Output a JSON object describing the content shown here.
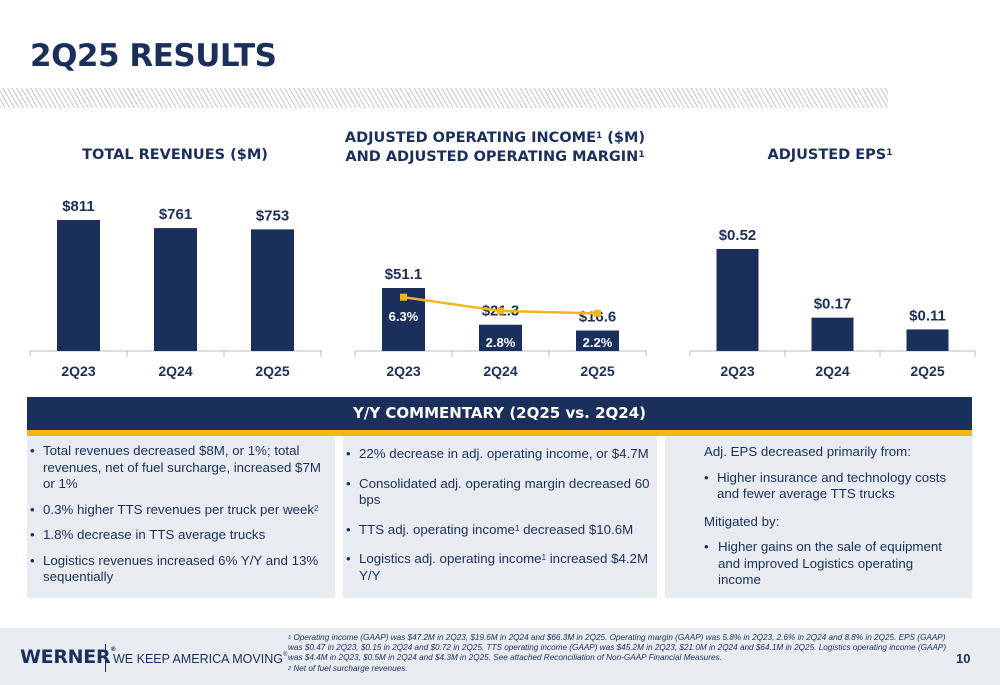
{
  "page": {
    "title": "2Q25 RESULTS",
    "page_number": "10"
  },
  "charts": {
    "revenues": {
      "title": "TOTAL REVENUES ($M)"
    },
    "income": {
      "title_line1": "ADJUSTED OPERATING INCOME",
      "title_line1_sup": "1",
      "title_line1_suffix": " ($M)",
      "title_line2": "AND ADJUSTED OPERATING MARGIN",
      "title_line2_sup": "1"
    },
    "eps": {
      "title": "ADJUSTED EPS",
      "title_sup": "1"
    }
  },
  "chart_data": [
    {
      "type": "bar",
      "title": "TOTAL REVENUES ($M)",
      "categories": [
        "2Q23",
        "2Q24",
        "2Q25"
      ],
      "values": [
        811,
        761,
        753
      ],
      "labels": [
        "$811",
        "$761",
        "$753"
      ],
      "ylim": [
        700,
        820
      ],
      "color": "#1b2f5c"
    },
    {
      "type": "bar",
      "title": "ADJUSTED OPERATING INCOME ($M) AND ADJUSTED OPERATING MARGIN",
      "categories": [
        "2Q23",
        "2Q24",
        "2Q25"
      ],
      "values": [
        51.1,
        21.3,
        16.6
      ],
      "labels": [
        "$51.1",
        "$21.3",
        "$16.6"
      ],
      "ylim": [
        0,
        55
      ],
      "color": "#1b2f5c",
      "line_series": {
        "values": [
          6.3,
          2.8,
          2.2
        ],
        "labels": [
          "6.3%",
          "2.8%",
          "2.2%"
        ],
        "color": "#f3b51a"
      }
    },
    {
      "type": "bar",
      "title": "ADJUSTED EPS",
      "categories": [
        "2Q23",
        "2Q24",
        "2Q25"
      ],
      "values": [
        0.52,
        0.17,
        0.11
      ],
      "labels": [
        "$0.52",
        "$0.17",
        "$0.11"
      ],
      "ylim": [
        0,
        0.6
      ],
      "color": "#1b2f5c"
    }
  ],
  "commentary": {
    "header": "Y/Y COMMENTARY (2Q25 vs. 2Q24)",
    "col1": {
      "b1": "Total revenues decreased $8M, or 1%; total revenues, net of fuel surcharge, increased $7M or 1%",
      "b2": "0.3% higher TTS revenues per truck per week",
      "b2_sup": "2",
      "b3": "1.8% decrease in TTS average trucks",
      "b4": "Logistics revenues increased 6% Y/Y and 13% sequentially"
    },
    "col2": {
      "b1": "22% decrease in adj. operating income, or $4.7M",
      "b2": "Consolidated adj. operating margin decreased 60 bps",
      "b3_a": "TTS adj. operating income",
      "b3_sup": "1",
      "b3_b": " decreased $10.6M",
      "b4_a": "Logistics adj. operating income",
      "b4_sup": "1",
      "b4_b": " increased $4.2M Y/Y"
    },
    "col3": {
      "intro": "Adj. EPS decreased primarily from:",
      "b1": "Higher insurance and technology costs and fewer average TTS trucks",
      "mitigated": "Mitigated by:",
      "b2": "Higher gains on the sale of equipment and improved Logistics operating income"
    }
  },
  "footer": {
    "logo": "WERNER",
    "logo_reg": "®",
    "tagline": "WE KEEP AMERICA MOVING",
    "tagline_reg": "®",
    "fn1_sup": "1",
    "fn1": " Operating income (GAAP) was $47.2M in 2Q23, $19.6M in 2Q24 and $66.3M in 2Q25. Operating margin (GAAP) was 5.8% in 2Q23, 2.6% in 2Q24 and 8.8% in 2Q25. EPS (GAAP) was $0.47 in 2Q23, $0.15 in 2Q24 and $0.72 in 2Q25. TTS operating income (GAAP) was $45.2M in 2Q23, $21.0M in 2Q24 and $64.1M in 2Q25. Logistics operating income (GAAP) was $4.4M in 2Q23, $0.5M in 2Q24 and $4.3M in 2Q25. See attached Reconciliation of Non-GAAP Financial Measures.",
    "fn2_sup": "2",
    "fn2": " Net of fuel surcharge revenues."
  }
}
